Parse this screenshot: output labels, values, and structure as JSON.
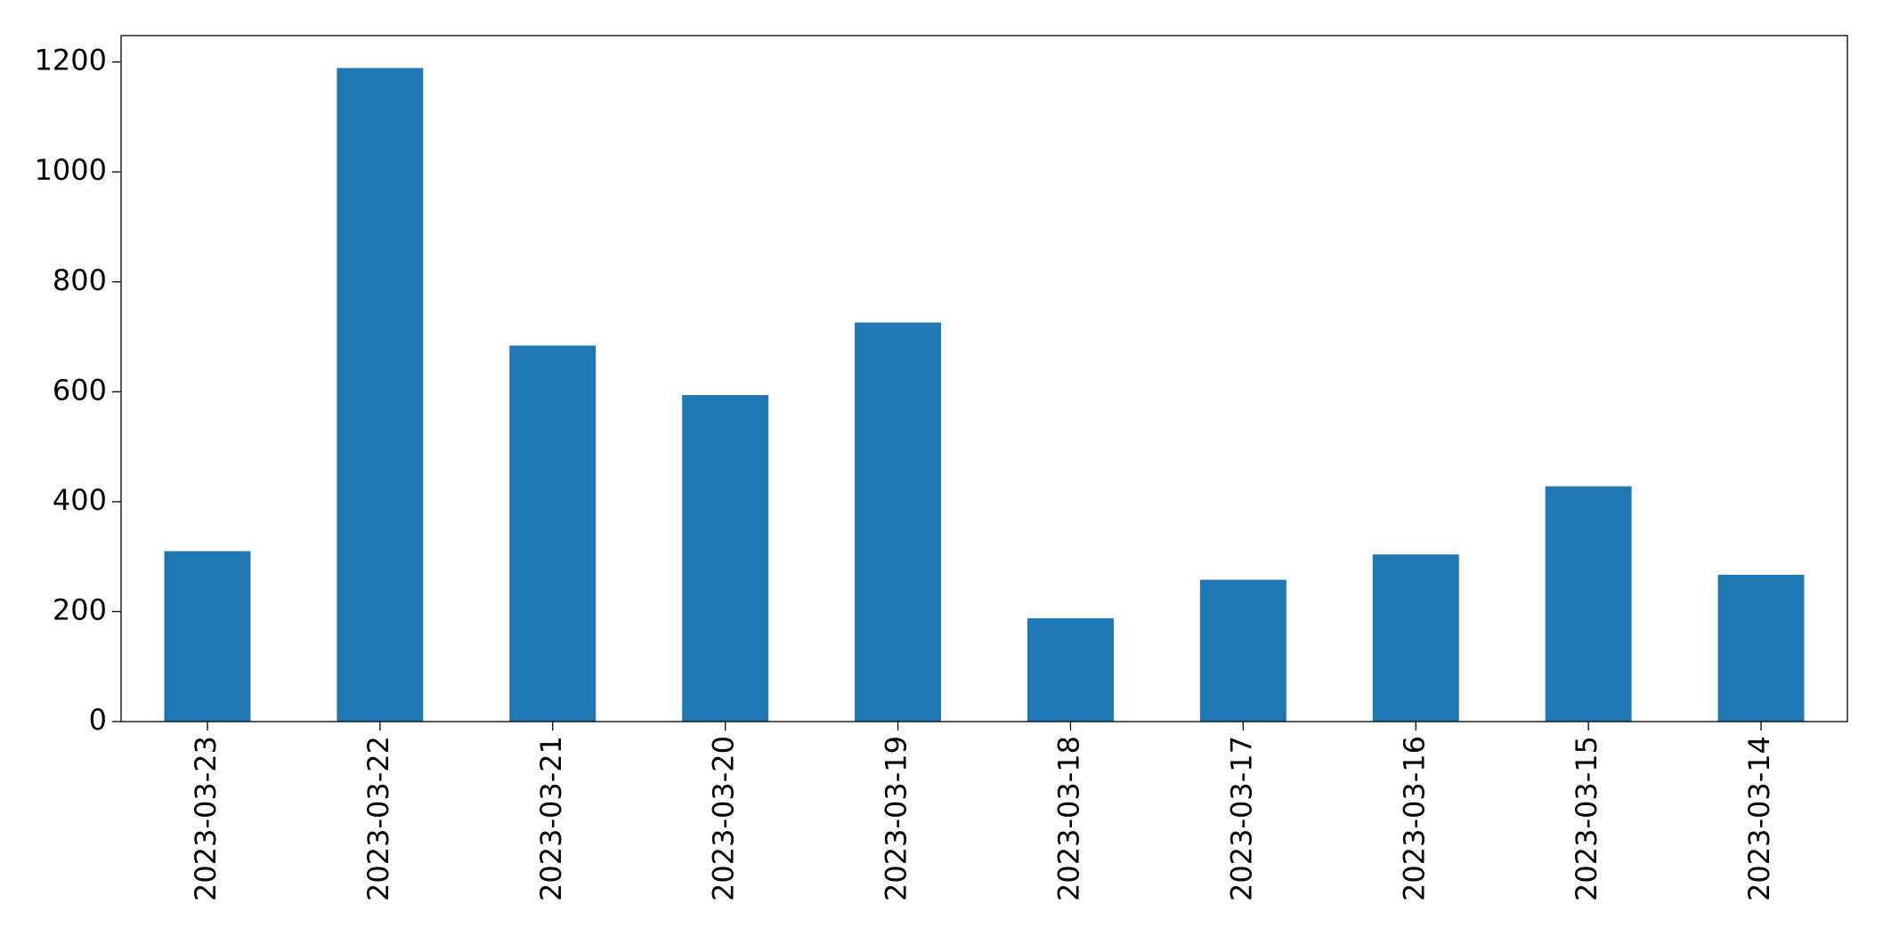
{
  "chart_data": {
    "type": "bar",
    "categories": [
      "2023-03-23",
      "2023-03-22",
      "2023-03-21",
      "2023-03-20",
      "2023-03-19",
      "2023-03-18",
      "2023-03-17",
      "2023-03-16",
      "2023-03-15",
      "2023-03-14"
    ],
    "values": [
      310,
      1189,
      684,
      594,
      726,
      188,
      258,
      304,
      428,
      267
    ],
    "color": "#1f77b4",
    "ylim": [
      0,
      1248
    ],
    "yticks": [
      0,
      200,
      400,
      600,
      800,
      1000,
      1200
    ],
    "grid": false
  }
}
